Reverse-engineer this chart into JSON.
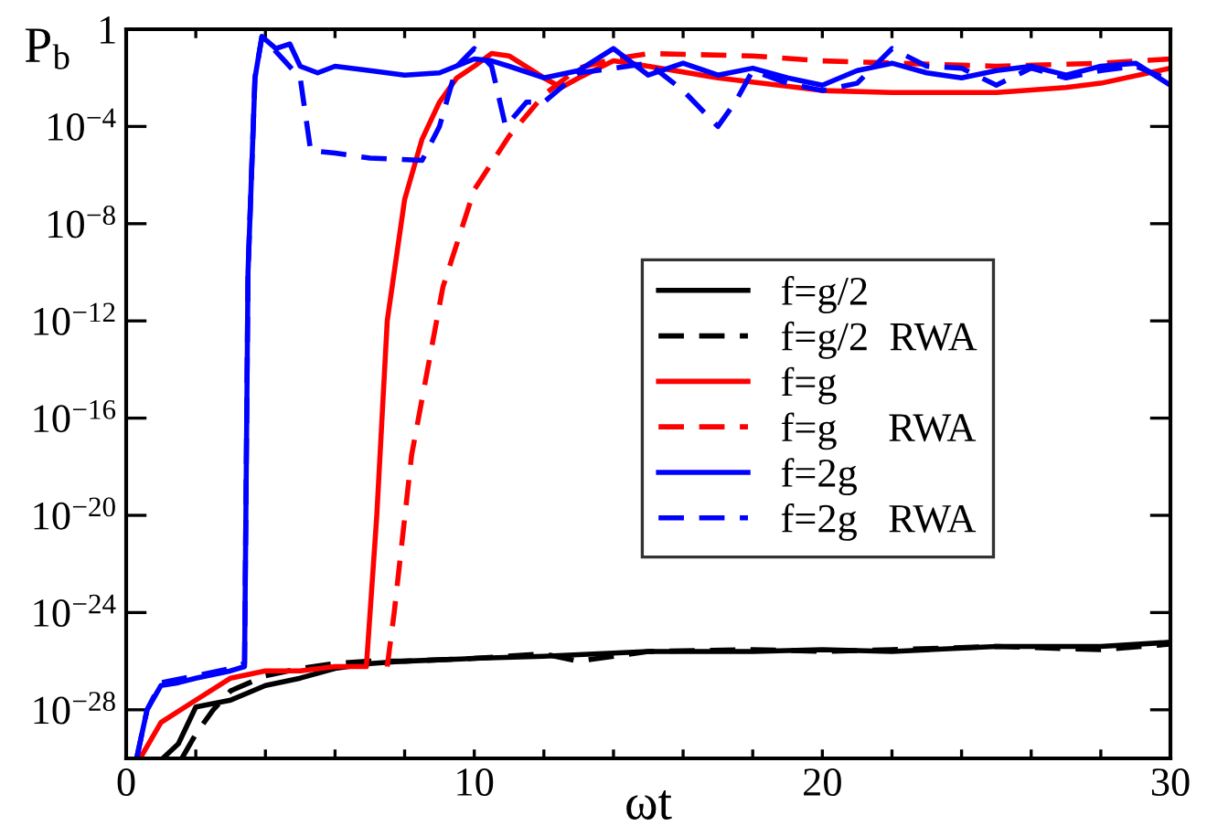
{
  "chart_data": {
    "type": "line",
    "xlabel": "ωt",
    "ylabel": "P$_{b}$",
    "log": "y",
    "xlim": [
      0,
      30
    ],
    "ylim": [
      1e-30,
      1
    ],
    "xticks": [
      0,
      {
        "value": 2,
        "label": null
      },
      {
        "value": 4,
        "label": null
      },
      {
        "value": 6,
        "label": null
      },
      {
        "value": 8,
        "label": null
      },
      10,
      {
        "value": 12,
        "label": null
      },
      {
        "value": 14,
        "label": null
      },
      {
        "value": 16,
        "label": null
      },
      {
        "value": 18,
        "label": null
      },
      20,
      {
        "value": 22,
        "label": null
      },
      {
        "value": 24,
        "label": null
      },
      {
        "value": 26,
        "label": null
      },
      {
        "value": 28,
        "label": null
      },
      30
    ],
    "yticks": [
      {
        "value": 1e-28,
        "label": "10$^{−28}$"
      },
      {
        "value": 1e-24,
        "label": "10$^{−24}$"
      },
      {
        "value": 1e-20,
        "label": "10$^{−20}$"
      },
      {
        "value": 1e-16,
        "label": "10$^{−16}$"
      },
      {
        "value": 1e-12,
        "label": "10$^{−12}$"
      },
      {
        "value": 1e-08,
        "label": "10$^{−8}$"
      },
      {
        "value": 0.0001,
        "label": "10$^{−4}$"
      },
      1
    ],
    "legend": "right",
    "grid": false,
    "marker": "none",
    "series": [
      {
        "name": "f=g/2",
        "color": "#000000",
        "line_style": "solid",
        "x": [
          1.05,
          1.5,
          2,
          3,
          4,
          5,
          6,
          7,
          8,
          10,
          12,
          15,
          18,
          20,
          22,
          25,
          28,
          30
        ],
        "values": [
          1e-30,
          4e-30,
          1.3e-28,
          2.5e-28,
          1e-27,
          2e-27,
          5e-27,
          8e-27,
          1e-26,
          1.3e-26,
          1.6e-26,
          2.5e-26,
          2.5e-26,
          3e-26,
          2.5e-26,
          4e-26,
          4e-26,
          6e-26
        ]
      },
      {
        "name": "f=g/2  RWA",
        "color": "#000000",
        "line_style": "dashed",
        "x": [
          1.6,
          2,
          2.5,
          3,
          4,
          5,
          6,
          7,
          8,
          10,
          12,
          13,
          15,
          18,
          20,
          22,
          25,
          28,
          30
        ],
        "values": [
          1e-30,
          1e-29,
          1e-28,
          6e-28,
          2.5e-27,
          5e-27,
          8e-27,
          1e-26,
          1e-26,
          1.3e-26,
          2e-26,
          1e-26,
          2.5e-26,
          3e-26,
          2.5e-26,
          3e-26,
          4e-26,
          3e-26,
          5e-26
        ]
      },
      {
        "name": "f=g",
        "color": "#ff0000",
        "line_style": "solid",
        "x": [
          0.4,
          1,
          2,
          3,
          4,
          5,
          6,
          6.9,
          7.2,
          7.5,
          8,
          8.5,
          9,
          9.5,
          10,
          10.5,
          11,
          12,
          12.5,
          13,
          14,
          15,
          17,
          20,
          22,
          25,
          27,
          28,
          30
        ],
        "values": [
          1e-30,
          3e-29,
          2.5e-28,
          2e-27,
          4e-27,
          4e-27,
          6e-27,
          6e-27,
          1e-20,
          1e-12,
          1e-07,
          3e-05,
          0.001,
          0.01,
          0.03,
          0.1,
          0.08,
          0.01,
          0.004,
          0.01,
          0.05,
          0.03,
          0.01,
          0.003,
          0.0025,
          0.0025,
          0.004,
          0.006,
          0.025
        ]
      },
      {
        "name": "f=g     RWA",
        "color": "#ff0000",
        "line_style": "dashed",
        "x": [
          7.5,
          7.7,
          8.2,
          9.1,
          10,
          11,
          12,
          13,
          14,
          15,
          18,
          20,
          25,
          28,
          30
        ],
        "values": [
          6e-27,
          1e-24,
          3e-18,
          2.5e-11,
          2.5e-07,
          4e-05,
          0.002,
          0.025,
          0.06,
          0.1,
          0.08,
          0.05,
          0.03,
          0.04,
          0.06
        ]
      },
      {
        "name": "f=2g",
        "color": "#0000ff",
        "line_style": "solid",
        "x": [
          0.3,
          0.6,
          1,
          1.5,
          2,
          3,
          3.4,
          3.5,
          3.7,
          3.9,
          4.3,
          4.7,
          5,
          5.5,
          6,
          7,
          8,
          9,
          10,
          10.5,
          11,
          12,
          13,
          14,
          15,
          16,
          17,
          18,
          19,
          20,
          21,
          22,
          23,
          24,
          25,
          26,
          27,
          28,
          29,
          30
        ],
        "values": [
          1e-30,
          1e-28,
          1e-27,
          1.3e-27,
          2e-27,
          4e-27,
          6e-27,
          1e-10,
          0.01,
          0.5,
          0.16,
          0.25,
          0.03,
          0.016,
          0.03,
          0.02,
          0.013,
          0.016,
          0.06,
          0.05,
          0.03,
          0.01,
          0.02,
          0.16,
          0.013,
          0.04,
          0.013,
          0.025,
          0.01,
          0.005,
          0.02,
          0.04,
          0.016,
          0.01,
          0.02,
          0.03,
          0.013,
          0.03,
          0.04,
          0.005
        ]
      },
      {
        "name": "f=2g   RWA",
        "color": "#0000ff",
        "line_style": "dashed",
        "x": [
          0.3,
          0.6,
          1,
          2,
          3,
          3.4,
          3.5,
          3.7,
          3.9,
          4.5,
          5,
          5.3,
          6,
          7,
          8.5,
          9,
          9.5,
          10,
          10.5,
          10.9,
          11.5,
          12,
          13,
          14,
          15,
          16,
          17,
          17.5,
          18,
          19,
          20,
          21,
          22,
          23,
          24,
          25,
          26,
          27,
          28,
          29,
          30
        ],
        "values": [
          1e-30,
          1e-28,
          1.3e-27,
          2.5e-27,
          5e-27,
          8e-27,
          1e-10,
          0.01,
          0.5,
          0.06,
          0.01,
          1e-05,
          8e-06,
          5e-06,
          4e-06,
          0.0001,
          0.03,
          0.16,
          0.03,
          0.0001,
          0.001,
          0.001,
          0.016,
          0.025,
          0.04,
          0.003,
          0.0001,
          0.001,
          0.02,
          0.006,
          0.003,
          0.006,
          0.16,
          0.03,
          0.025,
          0.005,
          0.025,
          0.01,
          0.02,
          0.03,
          0.008
        ]
      }
    ]
  }
}
